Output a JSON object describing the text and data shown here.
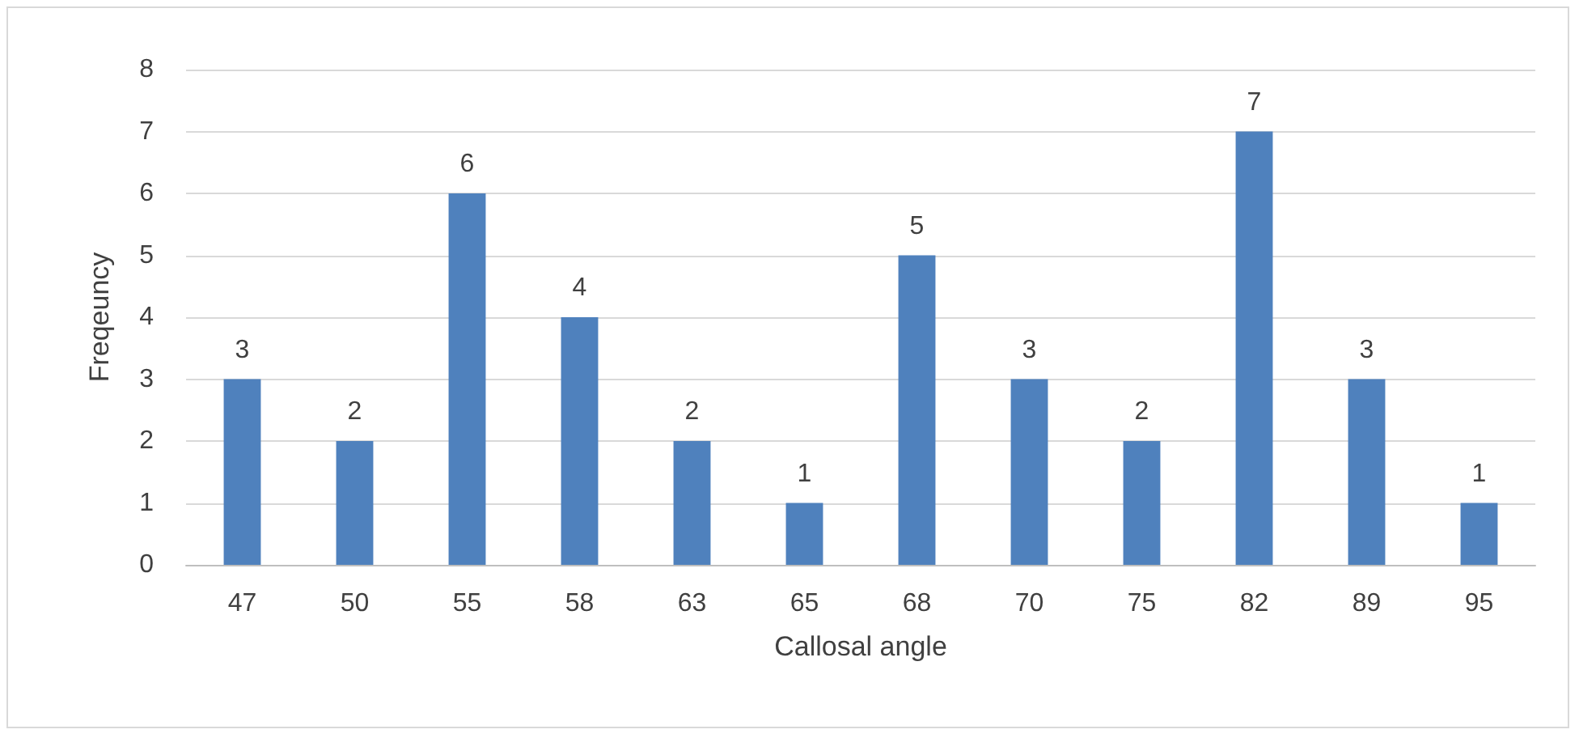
{
  "chart_data": {
    "type": "bar",
    "xlabel": "Callosal angle",
    "ylabel": "Freqeuncy",
    "categories": [
      "47",
      "50",
      "55",
      "58",
      "63",
      "65",
      "68",
      "70",
      "75",
      "82",
      "89",
      "95"
    ],
    "values": [
      3,
      2,
      6,
      4,
      2,
      1,
      5,
      3,
      2,
      7,
      3,
      1
    ],
    "color": "#4f81bd",
    "ylim": [
      0,
      8
    ],
    "yticks": [
      0,
      1,
      2,
      3,
      4,
      5,
      6,
      7,
      8
    ],
    "grid": "y",
    "data_labels": true
  }
}
